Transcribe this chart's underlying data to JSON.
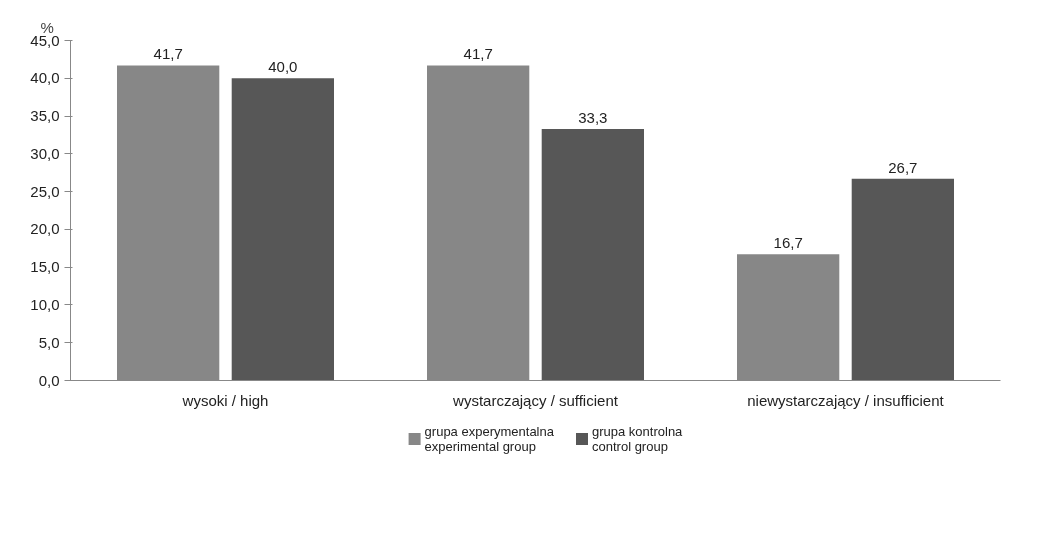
{
  "chart_data": {
    "type": "bar",
    "ylabel": "%",
    "categories": [
      "wysoki / high",
      "wystarczający / sufficient",
      "niewystarczający / insufficient"
    ],
    "series": [
      {
        "name": "grupa experymentalna\nexperimental group",
        "color": "#878787",
        "values": [
          41.7,
          41.7,
          16.7
        ],
        "value_labels": [
          "41,7",
          "41,7",
          "16,7"
        ]
      },
      {
        "name": "grupa kontrolna\ncontrol group",
        "color": "#575757",
        "values": [
          40.0,
          33.3,
          26.7
        ],
        "value_labels": [
          "40,0",
          "33,3",
          "26,7"
        ]
      }
    ],
    "ylim": [
      0,
      45
    ],
    "yticks": [
      {
        "value": 0,
        "label": "0,0"
      },
      {
        "value": 5,
        "label": "5,0"
      },
      {
        "value": 10,
        "label": "10,0"
      },
      {
        "value": 15,
        "label": "15,0"
      },
      {
        "value": 20,
        "label": "20,0"
      },
      {
        "value": 25,
        "label": "25,0"
      },
      {
        "value": 30,
        "label": "30,0"
      },
      {
        "value": 35,
        "label": "35,0"
      },
      {
        "value": 40,
        "label": "40,0"
      },
      {
        "value": 45,
        "label": "45,0"
      }
    ],
    "grid": false,
    "legend": "bottom"
  }
}
